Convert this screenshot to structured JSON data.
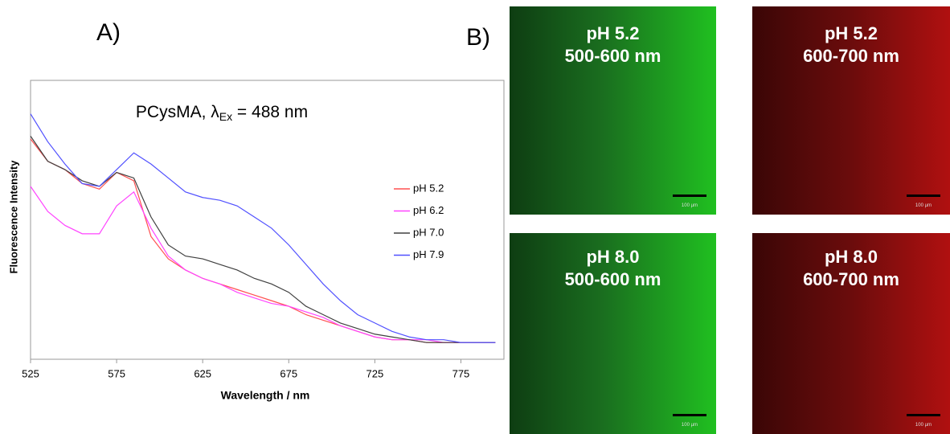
{
  "chart_data": {
    "type": "line",
    "title": {
      "text": "PCysMA, λ",
      "subscript": "Ex",
      "tail": " = 488 nm"
    },
    "xlabel": "Wavelength / nm",
    "ylabel": "Fluorescence Intensity",
    "x": [
      525,
      535,
      545,
      555,
      565,
      575,
      585,
      595,
      605,
      615,
      625,
      635,
      645,
      655,
      665,
      675,
      685,
      695,
      705,
      715,
      725,
      735,
      745,
      755,
      765,
      775,
      785,
      795
    ],
    "series": [
      {
        "name": "pH 5.2",
        "color": "#ff5050",
        "values": [
          79,
          71,
          68,
          63,
          61,
          67,
          64,
          44,
          36,
          32,
          29,
          27,
          25,
          23,
          21,
          19,
          16,
          14,
          12,
          10,
          8,
          7,
          7,
          6,
          6,
          6,
          6,
          6
        ]
      },
      {
        "name": "pH 6.2",
        "color": "#ff44ff",
        "values": [
          62,
          53,
          48,
          45,
          45,
          55,
          60,
          47,
          37,
          32,
          29,
          27,
          24,
          22,
          20,
          19,
          17,
          15,
          12,
          10,
          8,
          7,
          7,
          7,
          6,
          6,
          6,
          6
        ]
      },
      {
        "name": "pH 7.0",
        "color": "#404040",
        "values": [
          80,
          71,
          68,
          64,
          62,
          67,
          65,
          51,
          41,
          37,
          36,
          34,
          32,
          29,
          27,
          24,
          19,
          16,
          13,
          11,
          9,
          8,
          7,
          6,
          6,
          6,
          6,
          6
        ]
      },
      {
        "name": "pH 7.9",
        "color": "#5050ff",
        "values": [
          88,
          78,
          70,
          63,
          62,
          68,
          74,
          70,
          65,
          60,
          58,
          57,
          55,
          51,
          47,
          41,
          34,
          27,
          21,
          16,
          13,
          10,
          8,
          7,
          7,
          6,
          6,
          6
        ]
      }
    ],
    "xlim": [
      525,
      800
    ],
    "xticks": [
      525,
      575,
      625,
      675,
      725,
      775
    ],
    "ylim": [
      0,
      100
    ],
    "legend": "right"
  },
  "panel_labels": [
    "A)",
    "B)"
  ],
  "images": [
    {
      "title": "pH 5.2",
      "subtitle": "500-600 nm",
      "scale_bar": "100 µm"
    },
    {
      "title": "pH 5.2",
      "subtitle": "600-700 nm",
      "scale_bar": "100 µm"
    },
    {
      "title": "pH 8.0",
      "subtitle": "500-600 nm",
      "scale_bar": "100 µm"
    },
    {
      "title": "pH 8.0",
      "subtitle": "600-700 nm",
      "scale_bar": "100 µm"
    }
  ]
}
